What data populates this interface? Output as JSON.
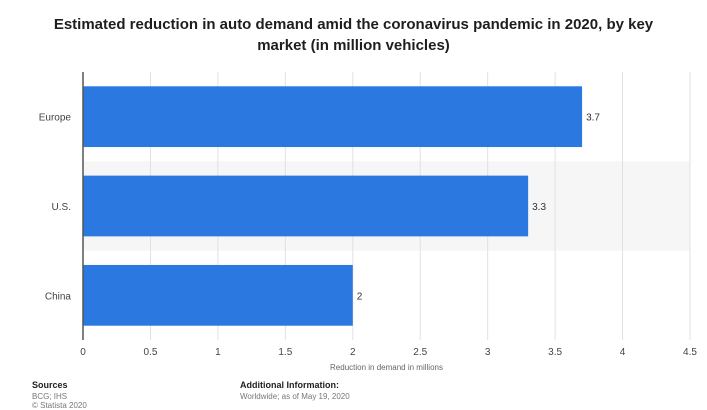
{
  "chart_data": {
    "type": "bar",
    "orientation": "horizontal",
    "title": "Estimated reduction in auto demand amid the coronavirus pandemic in 2020, by key market (in million vehicles)",
    "categories": [
      "Europe",
      "U.S.",
      "China"
    ],
    "values": [
      3.7,
      3.3,
      2
    ],
    "value_labels": [
      "3.7",
      "3.3",
      "2"
    ],
    "xlabel": "Reduction in demand in millions",
    "ylabel": "",
    "xlim": [
      0,
      4.5
    ],
    "x_ticks": [
      0,
      0.5,
      1,
      1.5,
      2,
      2.5,
      3,
      3.5,
      4,
      4.5
    ],
    "x_tick_labels": [
      "0",
      "0.5",
      "1",
      "1.5",
      "2",
      "2.5",
      "3",
      "3.5",
      "4",
      "4.5"
    ],
    "grid": true,
    "bar_color": "#2a78e0"
  },
  "footer": {
    "sources_heading": "Sources",
    "sources_text": "BCG; IHS",
    "copyright": "© Statista 2020",
    "additional_heading": "Additional Information:",
    "additional_text": "Worldwide; as of May 19, 2020"
  }
}
